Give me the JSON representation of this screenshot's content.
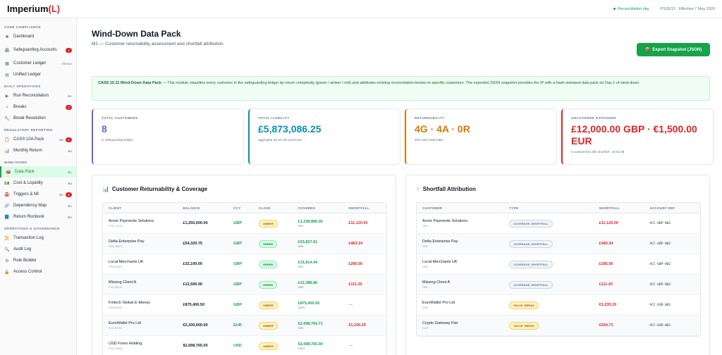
{
  "app": {
    "logo": "Imperium",
    "logo_paren": "(L)",
    "status": "Reconciliation day",
    "policy": "PS25/12 · Effective 7 May 2026"
  },
  "sidebar": {
    "sections": [
      {
        "title": "CORE COMPLIANCE",
        "items": [
          {
            "label": "Dashboard",
            "icon": "grid-icon",
            "glyph": "✱"
          },
          {
            "label": "Safeguarding Accounts",
            "icon": "bank-icon",
            "glyph": "🏛",
            "badge": "1",
            "tall": true
          },
          {
            "label": "Customer Ledger",
            "icon": "ledger-icon",
            "glyph": "▦",
            "shortcut": "REDNH"
          },
          {
            "label": "Unified Ledger",
            "icon": "book-icon",
            "glyph": "▤"
          }
        ]
      },
      {
        "title": "DAILY OPERATIONS",
        "items": [
          {
            "label": "Run Reconciliation",
            "icon": "play-icon",
            "glyph": "▶",
            "shortcut": "⌘2"
          },
          {
            "label": "Breaks",
            "icon": "bolt-icon",
            "glyph": "⚡",
            "badge": "2"
          },
          {
            "label": "Break Resolution",
            "icon": "wrench-icon",
            "glyph": "🔧"
          }
        ]
      },
      {
        "title": "REGULATORY REPORTING",
        "items": [
          {
            "label": "CASS 10A Pack",
            "icon": "clipboard-icon",
            "glyph": "📋",
            "shortcut": "⌘8",
            "badge": "1"
          },
          {
            "label": "Monthly Return",
            "icon": "chart-icon",
            "glyph": "📊",
            "shortcut": "⌘6"
          }
        ]
      },
      {
        "title": "WIND-DOWN",
        "items": [
          {
            "label": "Data Pack",
            "icon": "package-icon",
            "glyph": "📦",
            "shortcut": "⌘1",
            "active": true
          },
          {
            "label": "Cost & Liquidity",
            "icon": "money-icon",
            "glyph": "💵",
            "shortcut": "⌘8"
          },
          {
            "label": "Triggers & MI",
            "icon": "alarm-icon",
            "glyph": "🚨",
            "shortcut": "⌘2",
            "badge": "5"
          },
          {
            "label": "Dependency Map",
            "icon": "link-icon",
            "glyph": "🔗",
            "shortcut": "⌘4"
          },
          {
            "label": "Return Runbook",
            "icon": "runbook-icon",
            "glyph": "📘",
            "shortcut": "⌘5"
          }
        ]
      },
      {
        "title": "OPERATIONS & GOVERNANCE",
        "items": [
          {
            "label": "Transaction Log",
            "icon": "log-icon",
            "glyph": "📜"
          },
          {
            "label": "Audit Log",
            "icon": "search-icon",
            "glyph": "🔍"
          },
          {
            "label": "Rule Builder",
            "icon": "gear-icon",
            "glyph": "⚙"
          },
          {
            "label": "Access Control",
            "icon": "lock-icon",
            "glyph": "🔒"
          }
        ]
      }
    ]
  },
  "page": {
    "title": "Wind-Down Data Pack",
    "subtitle": "M1 — Customer returnability assessment and shortfall attribution",
    "export_label": "Export Snapshot (JSON)",
    "info_bold": "CASS 15.11 Wind-Down Data Pack",
    "info_text": " — This module classifies every customer in the safeguarding ledger by return complexity (green / amber / red) and attributes existing reconciliation breaks to specific customers. The exported JSON snapshot provides the IP with a hash-stamped data pack on Day 1 of wind-down."
  },
  "colors": {
    "purple": "#6366f1",
    "teal": "#0891b2",
    "orange": "#d97706",
    "red": "#dc2626"
  },
  "cards": [
    {
      "label": "TOTAL CUSTOMERS",
      "value": "8",
      "note": "in safeguarding ledger",
      "color": "#6366f1"
    },
    {
      "label": "TOTAL LIABILITY",
      "value": "£5,873,086.25",
      "note": "aggregate across all currencies",
      "color": "#0891b2"
    },
    {
      "label": "RETURNABILITY",
      "value": "4G · 4A · 0R",
      "note": "50% auto-returnable",
      "color": "#d97706"
    },
    {
      "label": "UNCOVERED EXPOSURE",
      "value": "£12,000.00 GBP · €1,500.00 EUR",
      "note": "6 customer(s) with shortfall · 16:01:08",
      "color": "#dc2626"
    }
  ],
  "coverage": {
    "title": "Customer Returnability & Coverage",
    "headers": [
      "CLIENT",
      "BALANCE",
      "CCY",
      "CLASS",
      "COVERED",
      "SHORTFALL"
    ],
    "rows": [
      {
        "client": "Acme Payments Solutions",
        "id": "PSD-77342",
        "balance": "£1,250,000.00",
        "ccy": "GBP",
        "class": "AMBER",
        "covered": "£1,238,880.00",
        "pct": "99%",
        "shortfall": "£11,120.00"
      },
      {
        "client": "Delta Enterprise Pay",
        "id": "PSD-46023",
        "balance": "£54,320.75",
        "ccy": "GBP",
        "class": "GREEN",
        "covered": "£53,837.51",
        "pct": "99%",
        "shortfall": "£483.24"
      },
      {
        "client": "Local Merchants UK",
        "id": "PSD-22987",
        "balance": "£32,100.00",
        "ccy": "GBP",
        "class": "GREEN",
        "covered": "£31,814.44",
        "pct": "99%",
        "shortfall": "£285.56"
      },
      {
        "client": "Missing Client A",
        "id": "PSD-55432",
        "balance": "£12,500.00",
        "ccy": "GBP",
        "class": "GREEN",
        "covered": "£12,388.80",
        "pct": "99%",
        "shortfall": "£111.20"
      },
      {
        "client": "Fintech Global E-Money",
        "id": "EMI-66156",
        "balance": "£875,400.50",
        "ccy": "GBP",
        "class": "AMBER",
        "covered": "£875,400.50",
        "pct": "100%",
        "shortfall": "—"
      },
      {
        "client": "EuroWallet Pro Ltd",
        "id": "EMI-98745",
        "balance": "€2,100,000.00",
        "ccy": "EUR",
        "class": "AMBER",
        "covered": "€2,098,764.71",
        "pct": "99%",
        "shortfall": "€1,235.29"
      },
      {
        "client": "USD Forex Holding",
        "id": "PSD-33856",
        "balance": "$1,098,765.00",
        "ccy": "USD",
        "class": "AMBER",
        "covered": "$1,098,765.00",
        "pct": "100%",
        "shortfall": "—"
      }
    ]
  },
  "shortfall": {
    "title": "Shortfall Attribution",
    "headers": [
      "CUSTOMER",
      "TYPE",
      "SHORTFALL",
      "ACCOUNT REF"
    ],
    "rows": [
      {
        "customer": "Acme Payments Solutions",
        "ccy": "GBP",
        "type": "COVERAGE_SHORTFALL",
        "amount": "£11,120.00",
        "ref": "ACC-GBP-002"
      },
      {
        "customer": "Delta Enterprise Pay",
        "ccy": "GBP",
        "type": "COVERAGE_SHORTFALL",
        "amount": "£483.24",
        "ref": "ACC-GBP-002"
      },
      {
        "customer": "Local Merchants UK",
        "ccy": "GBP",
        "type": "COVERAGE_SHORTFALL",
        "amount": "£285.56",
        "ref": "ACC-GBP-002"
      },
      {
        "customer": "Missing Client A",
        "ccy": "GBP",
        "type": "COVERAGE_SHORTFALL",
        "amount": "£111.20",
        "ref": "ACC-GBP-002"
      },
      {
        "customer": "EuroWallet Pro Ltd",
        "ccy": "EUR",
        "type": "VALUE_BREAK",
        "amount": "€1,235.29",
        "ref": "ACC-EUR-001"
      },
      {
        "customer": "Crypto Gateway Fiat",
        "ccy": "EUR",
        "type": "VALUE_BREAK",
        "amount": "€264.71",
        "ref": "ACC-EUR-001"
      }
    ]
  }
}
